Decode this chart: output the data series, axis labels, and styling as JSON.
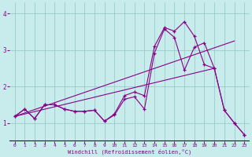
{
  "xlabel": "Windchill (Refroidissement éolien,°C)",
  "xlim": [
    -0.5,
    23.5
  ],
  "ylim": [
    0.5,
    4.3
  ],
  "yticks": [
    1,
    2,
    3,
    4
  ],
  "xticks": [
    0,
    1,
    2,
    3,
    4,
    5,
    6,
    7,
    8,
    9,
    10,
    11,
    12,
    13,
    14,
    15,
    16,
    17,
    18,
    19,
    20,
    21,
    22,
    23
  ],
  "bg_color": "#c8ecec",
  "line_color": "#880088",
  "axis_bar_color": "#220044",
  "grid_color": "#99cccc",
  "line1": {
    "x": [
      0,
      1,
      2,
      3,
      4,
      5,
      6,
      7,
      8,
      9,
      10,
      11,
      12,
      13,
      14,
      15,
      16,
      17,
      18,
      19,
      20,
      21,
      22,
      23
    ],
    "y": [
      1.18,
      1.38,
      1.12,
      1.5,
      1.5,
      1.38,
      1.32,
      1.32,
      1.35,
      1.05,
      1.25,
      1.75,
      1.85,
      1.75,
      3.1,
      3.62,
      3.52,
      3.78,
      3.38,
      2.6,
      2.5,
      1.35,
      1.0,
      0.68
    ]
  },
  "line2": {
    "x": [
      0,
      1,
      2,
      3,
      4,
      5,
      6,
      7,
      8,
      9,
      10,
      11,
      12,
      13,
      14,
      15,
      16,
      17,
      18,
      19,
      20,
      21,
      22,
      23
    ],
    "y": [
      1.18,
      1.38,
      1.12,
      1.5,
      1.5,
      1.38,
      1.32,
      1.32,
      1.35,
      1.05,
      1.22,
      1.65,
      1.72,
      1.38,
      2.92,
      3.58,
      3.35,
      2.45,
      3.08,
      3.2,
      2.5,
      1.35,
      1.0,
      0.68
    ]
  },
  "straight1": {
    "x": [
      0,
      22
    ],
    "y": [
      1.18,
      3.25
    ]
  },
  "straight2": {
    "x": [
      0,
      20
    ],
    "y": [
      1.18,
      2.5
    ]
  }
}
